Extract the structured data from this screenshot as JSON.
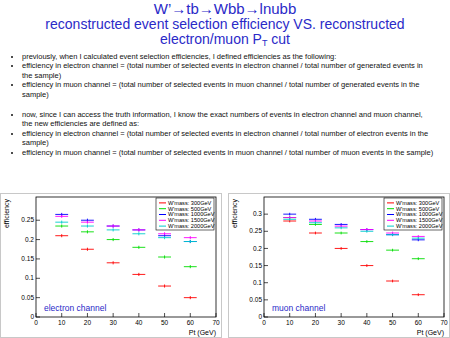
{
  "slide": {
    "title": "W’→tb→Wbb→lnubb",
    "subtitle": "reconstructed event selection efficiency VS. reconstructed electron/muon P",
    "subtitle_sub": "T",
    "subtitle_end": " cut",
    "bullets": [
      "previously, when I calculated event selection efficiencies, I defined efficiencies as the following:",
      "efficiency in electron channel = (total number of selected events in electron channel / total number of generated events in the sample)",
      "efficiency in muon channel = (total number of selected events in muon channel / total number of generated events in the sample)",
      "now, since I can access the truth information, I know the exact numbers of events in electron channel and muon channel, the new efficiencies are defined as:",
      "efficiency in electron channel = (total number of selected events in electron channel / total number of electron events in the sample)",
      "efficiency in muon channel = (total number of selected events in muon channel / total number of muon events in the sample)"
    ]
  },
  "chart_data": [
    {
      "type": "scatter",
      "annotation": "electron channel",
      "x_label": "Pt (GeV)",
      "y_label": "efficiency",
      "x": [
        10,
        20,
        30,
        40,
        50,
        60
      ],
      "x_errors": [
        2.5,
        2.5,
        2.5,
        2.5,
        2.5,
        2.5
      ],
      "xlim": [
        0,
        70
      ],
      "xticks": [
        0,
        10,
        20,
        30,
        40,
        50,
        60,
        70
      ],
      "ylim": [
        0,
        0.31
      ],
      "yticks": [
        0,
        0.05,
        0.1,
        0.15,
        0.2,
        0.25
      ],
      "grid": false,
      "legend": "top-right",
      "series": [
        {
          "name": "W'mass: 300GeV",
          "color": "#ff0000",
          "values": [
            0.21,
            0.175,
            0.14,
            0.11,
            0.08,
            0.05
          ],
          "errors": [
            0.004,
            0.004,
            0.004,
            0.004,
            0.004,
            0.004
          ]
        },
        {
          "name": "W'mass: 500GeV",
          "color": "#00dd00",
          "values": [
            0.235,
            0.22,
            0.2,
            0.18,
            0.155,
            0.13
          ],
          "errors": [
            0.004,
            0.004,
            0.004,
            0.004,
            0.004,
            0.004
          ]
        },
        {
          "name": "W'mass: 1000GeV",
          "color": "#0000ff",
          "values": [
            0.265,
            0.25,
            0.235,
            0.225,
            0.21,
            0.195
          ],
          "errors": [
            0.004,
            0.004,
            0.004,
            0.004,
            0.004,
            0.004
          ]
        },
        {
          "name": "W'mass: 1500GeV",
          "color": "#ff00ff",
          "values": [
            0.26,
            0.245,
            0.235,
            0.225,
            0.215,
            0.205
          ],
          "errors": [
            0.004,
            0.004,
            0.004,
            0.004,
            0.004,
            0.004
          ]
        },
        {
          "name": "W'mass: 2000GeV",
          "color": "#00cccc",
          "values": [
            0.245,
            0.235,
            0.225,
            0.215,
            0.205,
            0.195
          ],
          "errors": [
            0.004,
            0.004,
            0.004,
            0.004,
            0.004,
            0.004
          ]
        }
      ]
    },
    {
      "type": "scatter",
      "annotation": "muon channel",
      "x_label": "Pt (GeV)",
      "y_label": "efficiency",
      "x": [
        10,
        20,
        30,
        40,
        50,
        60
      ],
      "x_errors": [
        2.5,
        2.5,
        2.5,
        2.5,
        2.5,
        2.5
      ],
      "xlim": [
        0,
        70
      ],
      "xticks": [
        0,
        10,
        20,
        30,
        40,
        50,
        60,
        70
      ],
      "ylim": [
        0,
        0.35
      ],
      "yticks": [
        0,
        0.05,
        0.1,
        0.15,
        0.2,
        0.25,
        0.3
      ],
      "grid": false,
      "legend": "top-right",
      "series": [
        {
          "name": "W'mass: 300GeV",
          "color": "#ff0000",
          "values": [
            0.28,
            0.245,
            0.2,
            0.15,
            0.105,
            0.065
          ],
          "errors": [
            0.004,
            0.004,
            0.004,
            0.004,
            0.004,
            0.004
          ]
        },
        {
          "name": "W'mass: 500GeV",
          "color": "#00dd00",
          "values": [
            0.29,
            0.27,
            0.245,
            0.22,
            0.195,
            0.17
          ],
          "errors": [
            0.004,
            0.004,
            0.004,
            0.004,
            0.004,
            0.004
          ]
        },
        {
          "name": "W'mass: 1000GeV",
          "color": "#0000ff",
          "values": [
            0.3,
            0.285,
            0.27,
            0.255,
            0.24,
            0.225
          ],
          "errors": [
            0.004,
            0.004,
            0.004,
            0.004,
            0.004,
            0.004
          ]
        },
        {
          "name": "W'mass: 1500GeV",
          "color": "#ff00ff",
          "values": [
            0.29,
            0.28,
            0.265,
            0.255,
            0.245,
            0.235
          ],
          "errors": [
            0.004,
            0.004,
            0.004,
            0.004,
            0.004,
            0.004
          ]
        },
        {
          "name": "W'mass: 2000GeV",
          "color": "#00cccc",
          "values": [
            0.285,
            0.275,
            0.26,
            0.25,
            0.24,
            0.23
          ],
          "errors": [
            0.004,
            0.004,
            0.004,
            0.004,
            0.004,
            0.004
          ]
        }
      ]
    }
  ]
}
